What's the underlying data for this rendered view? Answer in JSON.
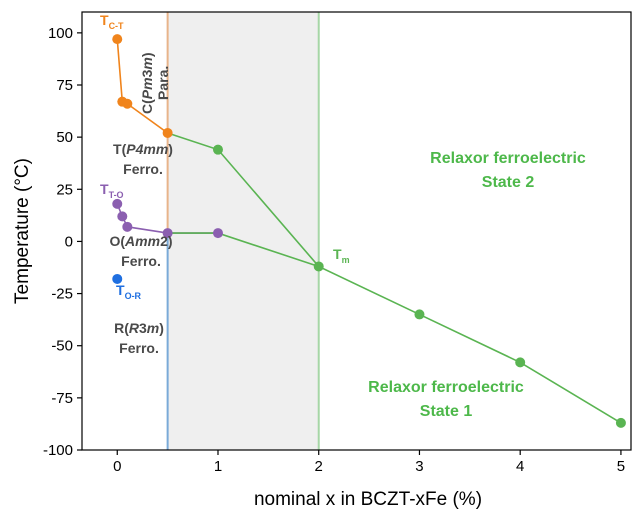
{
  "chart_data": {
    "type": "scatter",
    "xlabel": "nominal x in BCZT-xFe (%)",
    "ylabel": "Temperature (°C)",
    "xlim": [
      -0.35,
      5.1
    ],
    "ylim": [
      -100,
      110
    ],
    "xticks": [
      0,
      1,
      2,
      3,
      4,
      5
    ],
    "yticks": [
      100,
      75,
      50,
      25,
      0,
      -25,
      -50,
      -75,
      -100
    ],
    "shaded_region": {
      "x_from": 0.5,
      "x_to": 2,
      "color": "#efefef"
    },
    "vertical_lines": [
      {
        "x": 0.5,
        "y_from": -100,
        "y_to": 4,
        "color": "#7aaad8"
      },
      {
        "x": 0.5,
        "y_from": 4,
        "y_to": 110,
        "color": "#e8b48a"
      },
      {
        "x": 2,
        "y_from": -100,
        "y_to": 110,
        "color": "#a6d6a6"
      }
    ],
    "series": [
      {
        "color": "#f0841c",
        "x": [
          0,
          0.05,
          0.1,
          0.5
        ],
        "y": [
          97,
          67,
          66,
          52
        ],
        "marker_from": 0
      },
      {
        "color": "#8b5fb0",
        "x": [
          0,
          0.05,
          0.1,
          0.5,
          1
        ],
        "y": [
          18,
          12,
          7,
          4,
          4
        ],
        "marker_from": 0
      },
      {
        "color": "#1f6fe0",
        "x": [
          0
        ],
        "y": [
          -18
        ],
        "marker_from": 0
      },
      {
        "color": "#5ab452",
        "x": [
          0.5,
          1,
          2,
          3,
          4,
          5
        ],
        "y": [
          52,
          44,
          -12,
          -35,
          -58,
          -87
        ],
        "marker_from": 1
      },
      {
        "color": "#5ab452",
        "x": [
          0.5,
          1,
          2
        ],
        "y": [
          4,
          4,
          -12
        ],
        "marker_from": 9
      }
    ],
    "annotations": {
      "tct": {
        "main": "T",
        "sub": "C-T",
        "color": "#f0841c"
      },
      "tto": {
        "main": "T",
        "sub": "T-O",
        "color": "#8b5fb0"
      },
      "tor": {
        "main": "T",
        "sub": "O-R",
        "color": "#1f6fe0"
      },
      "tm": {
        "main": "T",
        "sub": "m",
        "color": "#5ab452"
      },
      "cubic": {
        "pre": "C(",
        "it": "Pm",
        "mid": "3",
        "it2": "m",
        "post": ")"
      },
      "para": "Para.",
      "tetra": {
        "pre": "T(",
        "it": "P4mm",
        "post": ")"
      },
      "ortho": {
        "pre": "O(",
        "it": "Amm",
        "post": "2)"
      },
      "rhombo": {
        "pre": "R(",
        "it": "R",
        "mid": "3",
        "it2": "m",
        "post": ")"
      },
      "ferro": "Ferro.",
      "relaxor2": {
        "line1": "Relaxor ferroelectric",
        "line2": "State 2",
        "color": "#4db84a"
      },
      "relaxor1": {
        "line1": "Relaxor ferroelectric",
        "line2": "State 1",
        "color": "#4db84a"
      }
    }
  }
}
